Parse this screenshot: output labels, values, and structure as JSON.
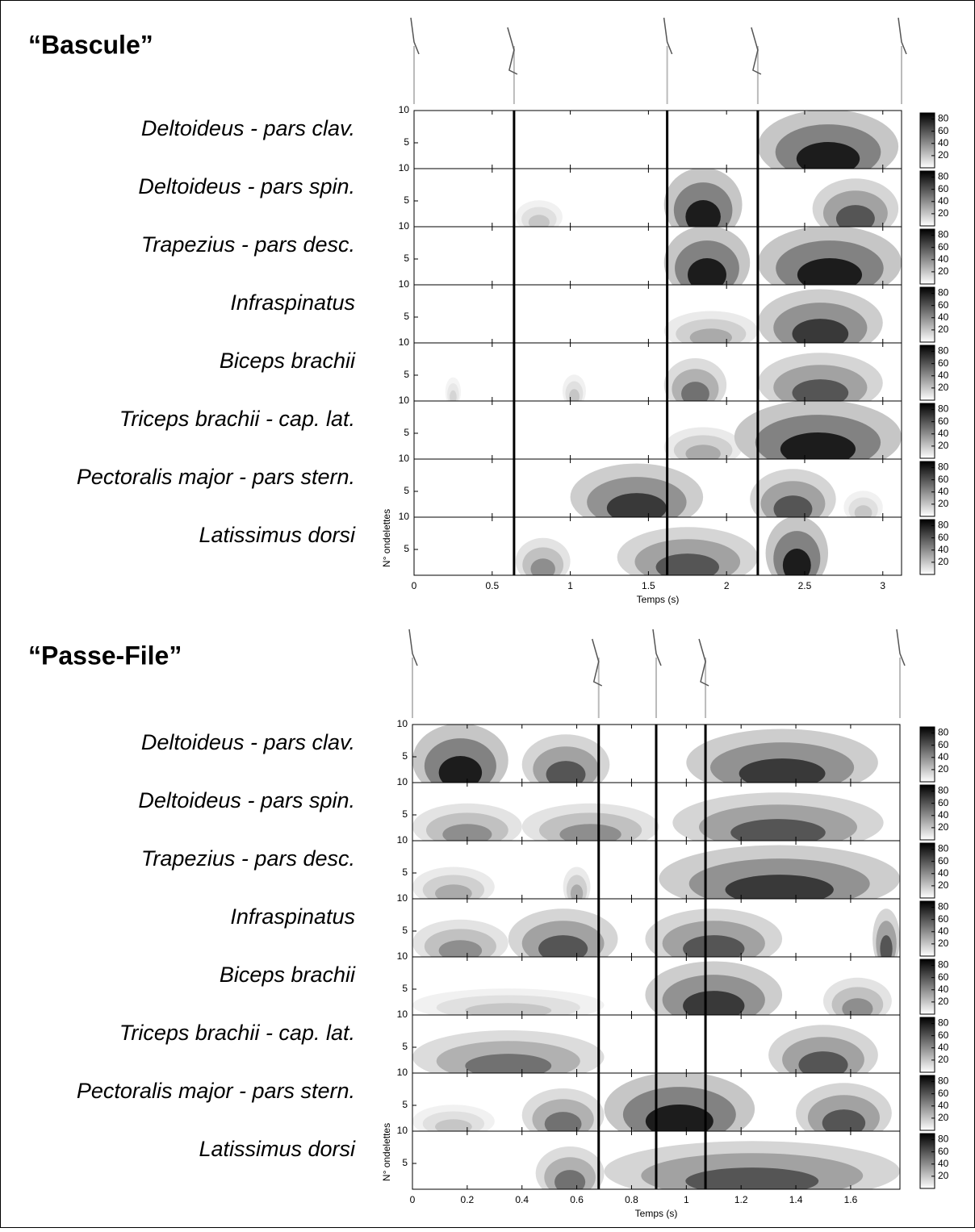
{
  "chart_data": [
    {
      "type": "heatmap",
      "title": "“Bascule”",
      "xlabel": "Temps (s)",
      "ylabel": "N° ondelettes",
      "xlim": [
        0,
        3.12
      ],
      "xticks": [
        0,
        0.5,
        1,
        1.5,
        2,
        2.5,
        3
      ],
      "ylim": [
        1,
        10
      ],
      "yticks": [
        5,
        10
      ],
      "clim": [
        0,
        90
      ],
      "cticks": [
        20,
        40,
        60,
        80
      ],
      "events": [
        0.64,
        1.62,
        2.2
      ],
      "rows": [
        "Deltoideus - pars clav.",
        "Deltoideus - pars spin.",
        "Trapezius - pars desc.",
        "Infraspinatus",
        "Biceps brachii",
        "Triceps brachii - cap. lat.",
        "Pectoralis major - pars stern.",
        "Latissimus dorsi"
      ],
      "activity": [
        [
          [
            2.2,
            3.1,
            80
          ]
        ],
        [
          [
            0.65,
            0.95,
            20
          ],
          [
            1.6,
            2.1,
            80
          ],
          [
            2.55,
            3.1,
            60
          ]
        ],
        [
          [
            1.6,
            2.15,
            80
          ],
          [
            2.2,
            3.12,
            80
          ]
        ],
        [
          [
            1.6,
            2.2,
            30
          ],
          [
            2.2,
            3.0,
            70
          ]
        ],
        [
          [
            0.2,
            0.3,
            15
          ],
          [
            0.95,
            1.1,
            20
          ],
          [
            1.6,
            2.0,
            50
          ],
          [
            2.2,
            3.0,
            60
          ]
        ],
        [
          [
            1.6,
            2.1,
            30
          ],
          [
            2.05,
            3.12,
            80
          ]
        ],
        [
          [
            1.0,
            1.85,
            70
          ],
          [
            2.15,
            2.7,
            60
          ],
          [
            2.75,
            3.0,
            20
          ]
        ],
        [
          [
            0.65,
            1.0,
            40
          ],
          [
            1.3,
            2.2,
            60
          ],
          [
            2.25,
            2.65,
            80
          ]
        ]
      ]
    },
    {
      "type": "heatmap",
      "title": "“Passe-File”",
      "xlabel": "Temps (s)",
      "ylabel": "N° ondelettes",
      "xlim": [
        0,
        1.78
      ],
      "xticks": [
        0,
        0.2,
        0.4,
        0.6,
        0.8,
        1,
        1.2,
        1.4,
        1.6
      ],
      "ylim": [
        1,
        10
      ],
      "yticks": [
        5,
        10
      ],
      "clim": [
        0,
        90
      ],
      "cticks": [
        20,
        40,
        60,
        80
      ],
      "events": [
        0.68,
        0.89,
        1.07
      ],
      "rows": [
        "Deltoideus - pars clav.",
        "Deltoideus - pars spin.",
        "Trapezius - pars desc.",
        "Infraspinatus",
        "Biceps brachii",
        "Triceps brachii - cap. lat.",
        "Pectoralis major - pars stern.",
        "Latissimus dorsi"
      ],
      "activity": [
        [
          [
            0,
            0.35,
            80
          ],
          [
            0.4,
            0.72,
            60
          ],
          [
            1.0,
            1.7,
            70
          ]
        ],
        [
          [
            0,
            0.4,
            40
          ],
          [
            0.4,
            0.9,
            40
          ],
          [
            0.95,
            1.72,
            60
          ]
        ],
        [
          [
            0,
            0.3,
            30
          ],
          [
            0.55,
            0.65,
            30
          ],
          [
            0.9,
            1.78,
            70
          ]
        ],
        [
          [
            0,
            0.35,
            40
          ],
          [
            0.35,
            0.75,
            60
          ],
          [
            0.85,
            1.35,
            60
          ],
          [
            1.68,
            1.78,
            60
          ]
        ],
        [
          [
            0,
            0.7,
            20
          ],
          [
            0.85,
            1.35,
            70
          ],
          [
            1.5,
            1.75,
            40
          ]
        ],
        [
          [
            0,
            0.7,
            50
          ],
          [
            1.3,
            1.7,
            60
          ]
        ],
        [
          [
            0,
            0.3,
            20
          ],
          [
            0.4,
            0.7,
            50
          ],
          [
            0.7,
            1.25,
            80
          ],
          [
            1.4,
            1.75,
            60
          ]
        ],
        [
          [
            0.45,
            0.7,
            50
          ],
          [
            0.7,
            1.78,
            60
          ]
        ]
      ]
    }
  ]
}
